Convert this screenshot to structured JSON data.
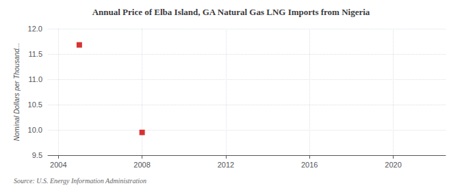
{
  "chart_data": {
    "type": "scatter",
    "title": "Annual Price of Elba Island, GA Natural Gas LNG Imports from Nigeria",
    "ylabel": "Nominal Dollars per Thousand...",
    "source": "Source: U.S. Energy Information Administration",
    "x": [
      2005,
      2008
    ],
    "values": [
      11.68,
      9.95
    ],
    "color": "#cc0000",
    "marker": "square",
    "xlim": [
      2003.5,
      2022.5
    ],
    "xticks": [
      2004,
      2008,
      2012,
      2016,
      2020
    ],
    "ylim": [
      9.5,
      12.0
    ],
    "yticks": [
      9.5,
      {
        "value": 10,
        "label": "10.0"
      },
      10.5,
      {
        "value": 11,
        "label": "11.0"
      },
      11.5,
      {
        "value": 12,
        "label": "12.0"
      }
    ],
    "grid": true
  }
}
